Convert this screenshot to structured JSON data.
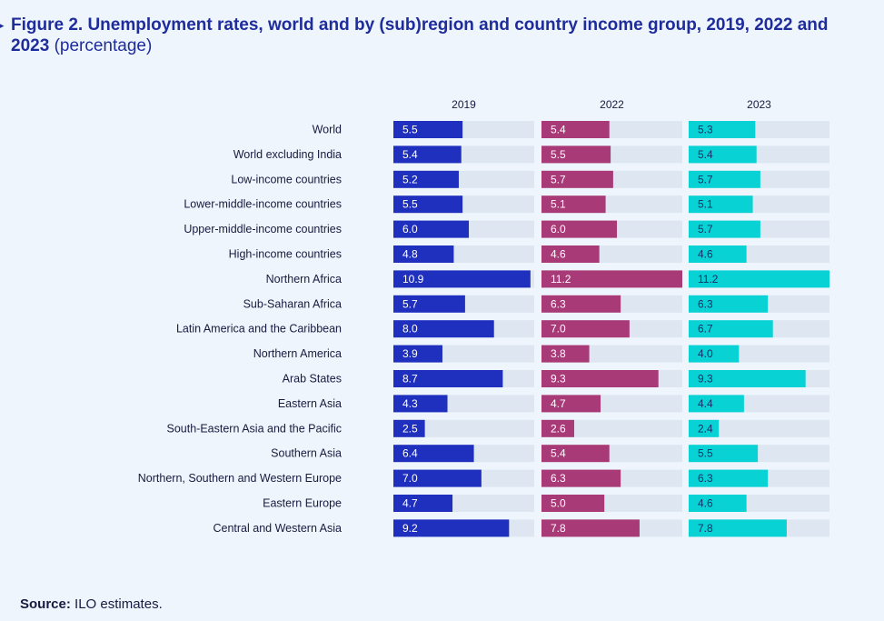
{
  "figure": {
    "marker": "▸",
    "title_bold": "Figure 2.  Unemployment rates, world and by (sub)region and country income group, 2019, 2022 and 2023",
    "title_suffix": "(percentage)"
  },
  "source": {
    "label": "Source:",
    "text": "ILO estimates."
  },
  "chart_data": {
    "type": "bar",
    "orientation": "horizontal",
    "title": "Unemployment rates, world and by (sub)region and country income group, 2019, 2022 and 2023",
    "unit": "percentage",
    "xlim": [
      0,
      11.2
    ],
    "grid": false,
    "categories": [
      "World",
      "World excluding India",
      "Low-income countries",
      "Lower-middle-income countries",
      "Upper-middle-income countries",
      "High-income countries",
      "Northern Africa",
      "Sub-Saharan Africa",
      "Latin America and the Caribbean",
      "Northern America",
      "Arab States",
      "Eastern Asia",
      "South-Eastern Asia and the Pacific",
      "Southern Asia",
      "Northern, Southern and Western Europe",
      "Eastern Europe",
      "Central and Western Asia"
    ],
    "series": [
      {
        "name": "2019",
        "color": "#1f2fbe",
        "label_color": "#ffffff",
        "values": [
          "5.5",
          "5.4",
          "5.2",
          "5.5",
          "6.0",
          "4.8",
          "10.9",
          "5.7",
          "8.0",
          "3.9",
          "8.7",
          "4.3",
          "2.5",
          "6.4",
          "7.0",
          "4.7",
          "9.2"
        ]
      },
      {
        "name": "2022",
        "color": "#a83a77",
        "label_color": "#ffffff",
        "values": [
          "5.4",
          "5.5",
          "5.7",
          "5.1",
          "6.0",
          "4.6",
          "11.2",
          "6.3",
          "7.0",
          "3.8",
          "9.3",
          "4.7",
          "2.6",
          "5.4",
          "6.3",
          "5.0",
          "7.8"
        ]
      },
      {
        "name": "2023",
        "color": "#09d2d5",
        "label_color": "#1a2a6a",
        "values": [
          "5.3",
          "5.4",
          "5.7",
          "5.1",
          "5.7",
          "4.6",
          "11.2",
          "6.3",
          "6.7",
          "4.0",
          "9.3",
          "4.4",
          "2.4",
          "5.5",
          "6.3",
          "4.6",
          "7.8"
        ]
      }
    ],
    "track_color": "#dde6f1"
  }
}
